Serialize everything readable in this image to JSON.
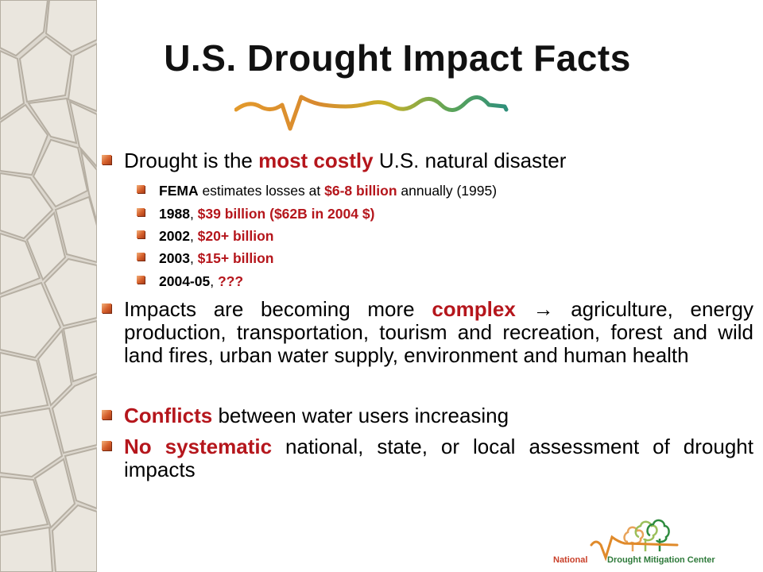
{
  "title": "U.S. Drought Impact Facts",
  "colors": {
    "accent_red": "#b5161c",
    "bullet_orange": "#d5602c"
  },
  "bullets": {
    "b1": {
      "pre": "Drought is the ",
      "em": "most costly",
      "post": " U.S. natural disaster"
    },
    "s1": {
      "b1": "FEMA",
      "t1": " estimates losses at ",
      "r1": "$6-8 billion",
      "t2": " annually (1995)"
    },
    "s2": {
      "b1": "1988",
      "t1": ", ",
      "r1": "$39 billion ($62B in 2004 $)"
    },
    "s3": {
      "b1": "2002",
      "t1": ", ",
      "r1": "$20+ billion"
    },
    "s4": {
      "b1": "2003",
      "t1": ", ",
      "r1": "$15+ billion"
    },
    "s5": {
      "b1": "2004-05",
      "t1": ", ",
      "r1": "???"
    },
    "b2": {
      "pre": "Impacts are becoming more ",
      "em": "complex",
      "arrow": " → ",
      "post": "agriculture, energy production, transportation, tourism and recreation, forest and wild land fires, urban water supply, environment and human health"
    },
    "b3": {
      "em": "Conflicts",
      "post": " between water users increasing"
    },
    "b4": {
      "em": "No systematic",
      "post": " national, state, or local assessment of drought impacts"
    }
  },
  "logo": {
    "word1": "National",
    "word2": "Drought Mitigation Center"
  },
  "icons": {
    "squiggle": "drought-squiggle-icon",
    "texture": "cracked-earth-texture",
    "logo_trees": "trees-icon"
  }
}
